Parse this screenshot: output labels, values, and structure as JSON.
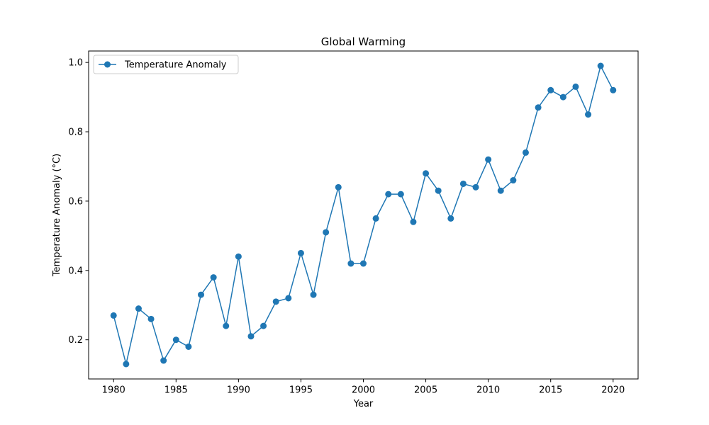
{
  "chart_data": {
    "type": "line",
    "title": "Global Warming",
    "xlabel": "Year",
    "ylabel": "Temperature Anomaly (°C)",
    "xlim": [
      1978,
      2022
    ],
    "ylim": [
      0.087,
      1.033
    ],
    "xticks": [
      1980,
      1985,
      1990,
      1995,
      2000,
      2005,
      2010,
      2015,
      2020
    ],
    "yticks": [
      0.2,
      0.4,
      0.6,
      0.8,
      1.0
    ],
    "ytick_labels": [
      "0.2",
      "0.4",
      "0.6",
      "0.8",
      "1.0"
    ],
    "grid": false,
    "legend_position": "top-left",
    "series": [
      {
        "name": "Temperature Anomaly",
        "color": "#1f77b4",
        "marker": "circle",
        "x": [
          1980,
          1981,
          1982,
          1983,
          1984,
          1985,
          1986,
          1987,
          1988,
          1989,
          1990,
          1991,
          1992,
          1993,
          1994,
          1995,
          1996,
          1997,
          1998,
          1999,
          2000,
          2001,
          2002,
          2003,
          2004,
          2005,
          2006,
          2007,
          2008,
          2009,
          2010,
          2011,
          2012,
          2013,
          2014,
          2015,
          2016,
          2017,
          2018,
          2019,
          2020
        ],
        "y": [
          0.27,
          0.13,
          0.29,
          0.26,
          0.14,
          0.2,
          0.18,
          0.33,
          0.38,
          0.24,
          0.44,
          0.21,
          0.24,
          0.31,
          0.32,
          0.45,
          0.33,
          0.51,
          0.64,
          0.42,
          0.42,
          0.55,
          0.62,
          0.62,
          0.54,
          0.68,
          0.63,
          0.55,
          0.65,
          0.64,
          0.72,
          0.63,
          0.66,
          0.74,
          0.87,
          0.92,
          0.9,
          0.93,
          0.85,
          0.99,
          0.92
        ]
      }
    ]
  }
}
